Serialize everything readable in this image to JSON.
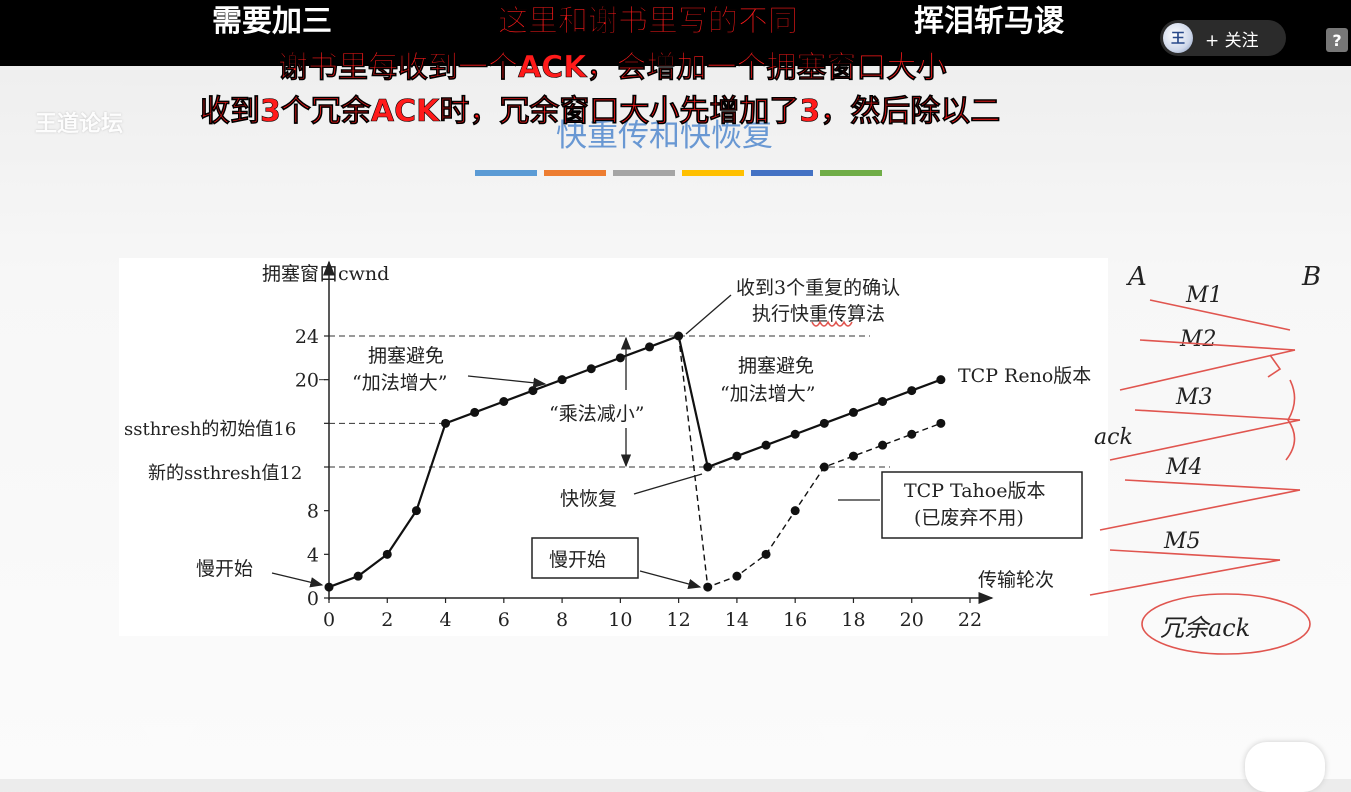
{
  "overlay": {
    "line1_left": "需要加三",
    "line1_mid": "这里和谢书里写的不同",
    "line1_right": "挥泪斩马谡",
    "line2": "谢书里每收到一个ACK，会增加一个拥塞窗口大小",
    "line3": "收到3个冗余ACK时，冗余窗口大小先增加了3，然后除以二"
  },
  "follow_button": {
    "icon": "site-logo-icon",
    "label": "+ 关注"
  },
  "help_icon": "?",
  "watermark": "王道论坛",
  "slide": {
    "title": "快重传和快恢复",
    "divider_colors": [
      "#5b9bd5",
      "#ed7d31",
      "#a5a5a5",
      "#ffc000",
      "#4472c4",
      "#70ad47"
    ]
  },
  "chart_data": {
    "type": "line",
    "ylabel": "拥塞窗口cwnd",
    "xlabel": "传输轮次",
    "xlim": [
      0,
      22
    ],
    "ylim": [
      0,
      24
    ],
    "x_ticks": [
      0,
      2,
      4,
      6,
      8,
      10,
      12,
      14,
      16,
      18,
      20,
      22
    ],
    "y_ticks": [
      0,
      4,
      8,
      12,
      16,
      20,
      24
    ],
    "series": [
      {
        "name": "TCP Reno版本",
        "style": "solid",
        "x": [
          0,
          1,
          2,
          3,
          4,
          5,
          6,
          7,
          8,
          9,
          10,
          11,
          12,
          13,
          14,
          15,
          16,
          17,
          18,
          19,
          20,
          21
        ],
        "values": [
          1,
          2,
          4,
          8,
          16,
          17,
          18,
          19,
          20,
          21,
          22,
          23,
          24,
          12,
          13,
          14,
          15,
          16,
          17,
          18,
          19,
          20
        ]
      },
      {
        "name": "TCP Tahoe版本",
        "style": "dashed",
        "x": [
          12,
          13,
          14,
          15,
          16,
          17,
          18,
          19,
          20,
          21
        ],
        "values": [
          24,
          1,
          2,
          4,
          8,
          12,
          13,
          14,
          15,
          16
        ]
      }
    ],
    "reference_lines": [
      {
        "label": "",
        "y": 24
      },
      {
        "label": "",
        "y": 20
      },
      {
        "label": "ssthresh的初始值16",
        "y": 16
      },
      {
        "label": "新的ssthresh值12",
        "y": 12
      }
    ],
    "annotations": {
      "received_3_dup_line1": "收到3个重复的确认",
      "received_3_dup_line2": "执行快重传算法",
      "ca1_line1": "拥塞避免",
      "ca1_line2": "“加法增大”",
      "ca2_line1": "拥塞避免",
      "ca2_line2": "“加法增大”",
      "md": "“乘法减小”",
      "fast_recovery": "快恢复",
      "slow_start_left": "慢开始",
      "slow_start_box": "慢开始",
      "reno_label": "TCP Reno版本",
      "tahoe_line1": "TCP Tahoe版本",
      "tahoe_line2": "(已废弃不用)"
    }
  },
  "handwriting": {
    "a": "A",
    "b": "B",
    "m1": "M1",
    "m2": "M2",
    "m3": "M3",
    "m4": "M4",
    "m5": "M5",
    "ack": "ack",
    "circled": "冗余ack",
    "color": "#e0554f"
  }
}
